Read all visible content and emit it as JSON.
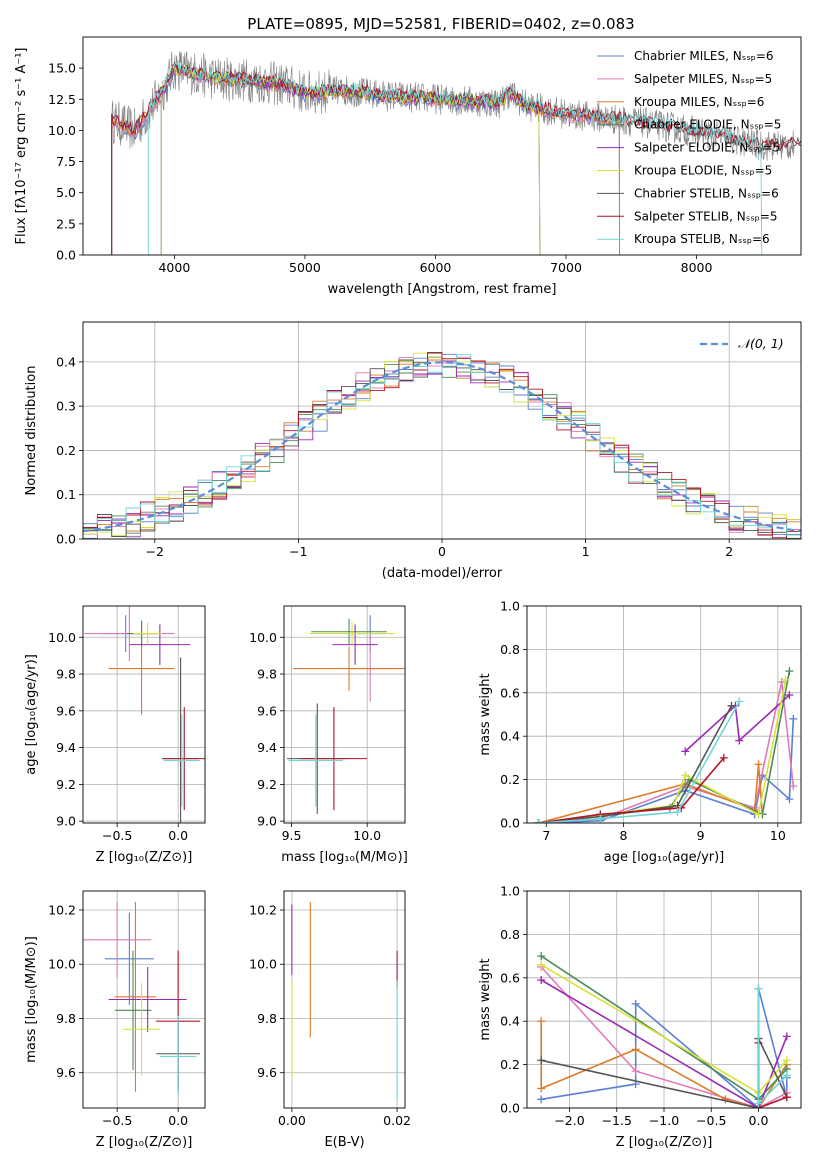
{
  "figure": {
    "title": "PLATE=0895, MJD=52581, FIBERID=0402, z=0.083"
  },
  "colors": {
    "Chabrier MILES": "#5b7fd6",
    "Salpeter MILES": "#e07ab8",
    "Kroupa MILES": "#e07a2a",
    "Chabrier ELODIE": "#4d8a5a",
    "Salpeter ELODIE": "#9a2ab5",
    "Kroupa ELODIE": "#d6e23a",
    "Chabrier STELIB": "#555555",
    "Salpeter STELIB": "#b0152a",
    "Kroupa STELIB": "#6fd6d6"
  },
  "chart_data": [
    {
      "id": "spectrum",
      "type": "line",
      "title": "PLATE=0895, MJD=52581, FIBERID=0402, z=0.083",
      "xlabel": "wavelength [Angstrom, rest frame]",
      "ylabel": "Flux [fλ10⁻¹⁷ erg cm⁻² s⁻¹ A⁻¹]",
      "xlim": [
        3300,
        8800
      ],
      "ylim": [
        0,
        17.5
      ],
      "xticks": [
        "4000",
        "5000",
        "6000",
        "7000",
        "8000"
      ],
      "yticks": [
        "0.0",
        "2.5",
        "5.0",
        "7.5",
        "10.0",
        "12.5",
        "15.0"
      ],
      "grid": false,
      "legend": "upper right",
      "series": [
        {
          "name": "Chabrier MILES, Nₛₛₚ=6",
          "key": "Chabrier MILES",
          "range": [
            3520,
            7410
          ]
        },
        {
          "name": "Salpeter MILES, Nₛₛₚ=5",
          "key": "Salpeter MILES",
          "range": [
            3520,
            7410
          ]
        },
        {
          "name": "Kroupa MILES, Nₛₛₚ=6",
          "key": "Kroupa MILES",
          "range": [
            3520,
            7410
          ]
        },
        {
          "name": "Chabrier ELODIE, Nₛₛₚ=5",
          "key": "Chabrier ELODIE",
          "range": [
            3900,
            6800
          ]
        },
        {
          "name": "Salpeter ELODIE, Nₛₛₚ=5",
          "key": "Salpeter ELODIE",
          "range": [
            3900,
            6800
          ]
        },
        {
          "name": "Kroupa ELODIE, Nₛₛₚ=5",
          "key": "Kroupa ELODIE",
          "range": [
            3900,
            6800
          ]
        },
        {
          "name": "Chabrier STELIB, Nₛₛₚ=6",
          "key": "Chabrier STELIB",
          "range": [
            3520,
            8850
          ]
        },
        {
          "name": "Salpeter STELIB, Nₛₛₚ=5",
          "key": "Salpeter STELIB",
          "range": [
            3520,
            8850
          ]
        },
        {
          "name": "Kroupa STELIB, Nₛₛₚ=6",
          "key": "Kroupa STELIB",
          "range": [
            3800,
            8500
          ]
        }
      ],
      "continuum": {
        "x": [
          3520,
          3700,
          3900,
          4000,
          4300,
          4600,
          4860,
          5000,
          5300,
          5600,
          5900,
          6200,
          6500,
          6563,
          6700,
          7000,
          7300,
          7600,
          8000,
          8300,
          8500
        ],
        "y": [
          10.8,
          10.0,
          13.0,
          15.0,
          14.2,
          14.0,
          13.6,
          13.0,
          13.2,
          12.8,
          12.6,
          12.4,
          12.2,
          13.0,
          12.0,
          11.3,
          11.0,
          10.6,
          9.9,
          9.2,
          8.8
        ]
      }
    },
    {
      "id": "residuals",
      "type": "bar",
      "xlabel": "(data-model)/error",
      "ylabel": "Normed distribution",
      "xlim": [
        -2.5,
        2.5
      ],
      "ylim": [
        0,
        0.49
      ],
      "xticks": [
        "−2",
        "−1",
        "0",
        "1",
        "2"
      ],
      "yticks": [
        "0.0",
        "0.1",
        "0.2",
        "0.3",
        "0.4"
      ],
      "grid": true,
      "legend": "upper right",
      "reference": {
        "name": "𝒩(0, 1)",
        "color": "#5b8fd6"
      },
      "bin_width": 0.1
    },
    {
      "id": "age-vs-Z",
      "type": "scatter",
      "xlabel": "Z [log₁₀(Z/Z⊙)]",
      "ylabel": "age  [log₁₀(age/yr)]",
      "xlim": [
        -0.78,
        0.22
      ],
      "ylim": [
        8.99,
        10.17
      ],
      "xticks": [
        "−0.5",
        "0.0"
      ],
      "yticks": [
        "9.0",
        "9.2",
        "9.4",
        "9.6",
        "9.8",
        "10.0"
      ],
      "grid": true,
      "points": [
        {
          "key": "Chabrier MILES",
          "x": -0.43,
          "xerr": 0.2,
          "y": 10.02,
          "yerr": 0.1
        },
        {
          "key": "Salpeter MILES",
          "x": -0.4,
          "xerr": 0.37,
          "y": 10.02,
          "yerr": 0.15
        },
        {
          "key": "Kroupa MILES",
          "x": -0.3,
          "xerr": 0.27,
          "y": 9.83,
          "yerr": 0.25
        },
        {
          "key": "Chabrier ELODIE",
          "x": -0.3,
          "xerr": 0.12,
          "y": 10.02,
          "yerr": 0.07
        },
        {
          "key": "Salpeter ELODIE",
          "x": -0.15,
          "xerr": 0.25,
          "y": 9.96,
          "yerr": 0.11
        },
        {
          "key": "Kroupa ELODIE",
          "x": -0.25,
          "xerr": 0.12,
          "y": 10.02,
          "yerr": 0.06
        },
        {
          "key": "Chabrier STELIB",
          "x": 0.02,
          "xerr": 0.15,
          "y": 9.34,
          "yerr": 0.55
        },
        {
          "key": "Salpeter STELIB",
          "x": 0.05,
          "xerr": 0.18,
          "y": 9.34,
          "yerr": 0.28
        },
        {
          "key": "Kroupa STELIB",
          "x": 0.03,
          "xerr": 0.15,
          "y": 9.33,
          "yerr": 0.25
        }
      ]
    },
    {
      "id": "age-vs-mass",
      "type": "scatter",
      "xlabel": "mass [log₁₀(M/M⊙)]",
      "ylabel": "",
      "xlim": [
        9.45,
        10.25
      ],
      "ylim": [
        8.99,
        10.17
      ],
      "xticks": [
        "9.5",
        "10.0"
      ],
      "yticks": [
        "9.0",
        "9.2",
        "9.4",
        "9.6",
        "9.8",
        "10.0"
      ],
      "grid": true,
      "points": [
        {
          "key": "Chabrier MILES",
          "x": 10.02,
          "xerr": 0.15,
          "y": 10.02,
          "yerr": 0.1
        },
        {
          "key": "Salpeter MILES",
          "x": 10.02,
          "xerr": 0.15,
          "y": 9.83,
          "yerr": 0.18
        },
        {
          "key": "Kroupa MILES",
          "x": 9.88,
          "xerr": 0.37,
          "y": 9.83,
          "yerr": 0.12
        },
        {
          "key": "Chabrier ELODIE",
          "x": 9.88,
          "xerr": 0.25,
          "y": 10.03,
          "yerr": 0.07
        },
        {
          "key": "Salpeter ELODIE",
          "x": 9.92,
          "xerr": 0.15,
          "y": 9.96,
          "yerr": 0.11
        },
        {
          "key": "Kroupa ELODIE",
          "x": 9.9,
          "xerr": 0.28,
          "y": 10.02,
          "yerr": 0.06
        },
        {
          "key": "Chabrier STELIB",
          "x": 9.67,
          "xerr": 0.2,
          "y": 9.34,
          "yerr": 0.3
        },
        {
          "key": "Salpeter STELIB",
          "x": 9.78,
          "xerr": 0.22,
          "y": 9.34,
          "yerr": 0.28
        },
        {
          "key": "Kroupa STELIB",
          "x": 9.66,
          "xerr": 0.18,
          "y": 9.33,
          "yerr": 0.25
        }
      ]
    },
    {
      "id": "weight-vs-age",
      "type": "line",
      "xlabel": "age  [log₁₀(age/yr)]",
      "ylabel": "mass weight",
      "xlim": [
        6.75,
        10.3
      ],
      "ylim": [
        0,
        1.0
      ],
      "xticks": [
        "7",
        "8",
        "9",
        "10"
      ],
      "yticks": [
        "0.0",
        "0.2",
        "0.4",
        "0.6",
        "0.8",
        "1.0"
      ],
      "grid": true,
      "series": [
        {
          "key": "Chabrier MILES",
          "x": [
            6.9,
            7.7,
            8.8,
            9.7,
            9.8,
            10.15,
            10.2
          ],
          "y": [
            0.0,
            0.01,
            0.15,
            0.04,
            0.22,
            0.11,
            0.48
          ]
        },
        {
          "key": "Salpeter MILES",
          "x": [
            6.9,
            7.7,
            8.8,
            9.7,
            10.05,
            10.2
          ],
          "y": [
            0.0,
            0.02,
            0.17,
            0.07,
            0.65,
            0.17
          ]
        },
        {
          "key": "Kroupa MILES",
          "x": [
            6.9,
            8.8,
            9.7,
            9.75,
            9.8
          ],
          "y": [
            0.0,
            0.18,
            0.06,
            0.27,
            0.04
          ]
        },
        {
          "key": "Chabrier ELODIE",
          "x": [
            6.9,
            8.6,
            8.85,
            9.8,
            10.15
          ],
          "y": [
            0.0,
            0.07,
            0.2,
            0.04,
            0.7
          ]
        },
        {
          "key": "Salpeter ELODIE",
          "x": [
            8.8,
            9.45,
            9.5,
            10.15
          ],
          "y": [
            0.33,
            0.54,
            0.38,
            0.59
          ]
        },
        {
          "key": "Kroupa ELODIE",
          "x": [
            6.9,
            8.65,
            8.8,
            9.75,
            10.1
          ],
          "y": [
            0.0,
            0.08,
            0.22,
            0.04,
            0.66
          ]
        },
        {
          "key": "Chabrier STELIB",
          "x": [
            6.9,
            7.7,
            8.7,
            9.4
          ],
          "y": [
            0.0,
            0.03,
            0.08,
            0.54
          ]
        },
        {
          "key": "Salpeter STELIB",
          "x": [
            6.9,
            7.7,
            8.75,
            9.3
          ],
          "y": [
            0.0,
            0.04,
            0.07,
            0.3
          ]
        },
        {
          "key": "Kroupa STELIB",
          "x": [
            6.9,
            7.7,
            8.7,
            9.5
          ],
          "y": [
            0.0,
            0.02,
            0.05,
            0.56
          ]
        }
      ]
    },
    {
      "id": "mass-vs-Z",
      "type": "scatter",
      "xlabel": "Z [log₁₀(Z/Z⊙)]",
      "ylabel": "mass [log₁₀(M/M⊙)]",
      "xlim": [
        -0.78,
        0.22
      ],
      "ylim": [
        9.47,
        10.27
      ],
      "xticks": [
        "−0.5",
        "0.0"
      ],
      "yticks": [
        "9.6",
        "9.8",
        "10.0",
        "10.2"
      ],
      "grid": true,
      "points": [
        {
          "key": "Chabrier MILES",
          "x": -0.4,
          "xerr": 0.2,
          "y": 10.02,
          "yerr": 0.17
        },
        {
          "key": "Salpeter MILES",
          "x": -0.5,
          "xerr": 0.28,
          "y": 10.09,
          "yerr": 0.14
        },
        {
          "key": "Kroupa MILES",
          "x": -0.35,
          "xerr": 0.17,
          "y": 9.88,
          "yerr": 0.35
        },
        {
          "key": "Chabrier ELODIE",
          "x": -0.37,
          "xerr": 0.15,
          "y": 9.83,
          "yerr": 0.22
        },
        {
          "key": "Salpeter ELODIE",
          "x": -0.25,
          "xerr": 0.32,
          "y": 9.87,
          "yerr": 0.12
        },
        {
          "key": "Kroupa ELODIE",
          "x": -0.3,
          "xerr": 0.15,
          "y": 9.76,
          "yerr": 0.17
        },
        {
          "key": "Chabrier STELIB",
          "x": 0.0,
          "xerr": 0.18,
          "y": 9.67,
          "yerr": 0.12
        },
        {
          "key": "Salpeter STELIB",
          "x": 0.0,
          "xerr": 0.18,
          "y": 9.79,
          "yerr": 0.26
        },
        {
          "key": "Kroupa STELIB",
          "x": 0.0,
          "xerr": 0.15,
          "y": 9.66,
          "yerr": 0.15
        }
      ]
    },
    {
      "id": "mass-vs-EBV",
      "type": "scatter",
      "xlabel": "E(B-V)",
      "ylabel": "",
      "xlim": [
        -0.0015,
        0.0215
      ],
      "ylim": [
        9.47,
        10.27
      ],
      "xticks": [
        "0.00",
        "0.02"
      ],
      "yticks": [
        "9.6",
        "9.8",
        "10.0",
        "10.2"
      ],
      "grid": true,
      "points": [
        {
          "key": "Salpeter ELODIE",
          "x": 0.0,
          "xerr": 0,
          "y": 10.09,
          "yerr": 0.13
        },
        {
          "key": "Kroupa ELODIE",
          "x": 0.0,
          "xerr": 0,
          "y": 9.76,
          "yerr": 0.18
        },
        {
          "key": "Kroupa MILES",
          "x": 0.0035,
          "xerr": 0,
          "y": 9.98,
          "yerr": 0.25
        },
        {
          "key": "Salpeter STELIB",
          "x": 0.02,
          "xerr": 0,
          "y": 9.98,
          "yerr": 0.07
        },
        {
          "key": "Kroupa STELIB",
          "x": 0.02,
          "xerr": 0,
          "y": 9.72,
          "yerr": 0.22
        }
      ]
    },
    {
      "id": "weight-vs-Z",
      "type": "line",
      "xlabel": "Z [log₁₀(Z/Z⊙)]",
      "ylabel": "mass weight",
      "xlim": [
        -2.45,
        0.45
      ],
      "ylim": [
        0,
        1.0
      ],
      "xticks": [
        "−2.0",
        "−1.5",
        "−1.0",
        "−0.5",
        "0.0"
      ],
      "yticks": [
        "0.0",
        "0.2",
        "0.4",
        "0.6",
        "0.8",
        "1.0"
      ],
      "grid": true,
      "series": [
        {
          "key": "Chabrier MILES",
          "x": [
            -2.3,
            -1.3,
            -1.3,
            0.0,
            0.0,
            0.3,
            0.3
          ],
          "y": [
            0.04,
            0.11,
            0.48,
            0.0,
            0.55,
            0.05,
            0.14
          ]
        },
        {
          "key": "Salpeter MILES",
          "x": [
            -2.3,
            -1.3,
            0.0,
            0.3
          ],
          "y": [
            0.65,
            0.17,
            0.0,
            0.07
          ]
        },
        {
          "key": "Kroupa MILES",
          "x": [
            -2.3,
            -2.3,
            -1.3,
            -0.35,
            0.0,
            0.3
          ],
          "y": [
            0.4,
            0.09,
            0.27,
            0.04,
            0.0,
            0.2
          ]
        },
        {
          "key": "Chabrier ELODIE",
          "x": [
            -2.3,
            0.0,
            0.3
          ],
          "y": [
            0.7,
            0.04,
            0.18
          ]
        },
        {
          "key": "Salpeter ELODIE",
          "x": [
            -2.3,
            0.0,
            0.3
          ],
          "y": [
            0.59,
            0.0,
            0.33
          ]
        },
        {
          "key": "Kroupa ELODIE",
          "x": [
            -2.3,
            0.0,
            0.3
          ],
          "y": [
            0.66,
            0.07,
            0.22
          ]
        },
        {
          "key": "Chabrier STELIB",
          "x": [
            -2.3,
            0.0,
            0.0,
            0.3
          ],
          "y": [
            0.22,
            0.0,
            0.32,
            0.05
          ]
        },
        {
          "key": "Salpeter STELIB",
          "x": [
            0.0,
            0.0,
            0.3
          ],
          "y": [
            0.3,
            0.0,
            0.05
          ]
        },
        {
          "key": "Kroupa STELIB",
          "x": [
            0.0,
            0.0,
            0.3
          ],
          "y": [
            0.55,
            0.02,
            0.15
          ]
        }
      ]
    }
  ]
}
